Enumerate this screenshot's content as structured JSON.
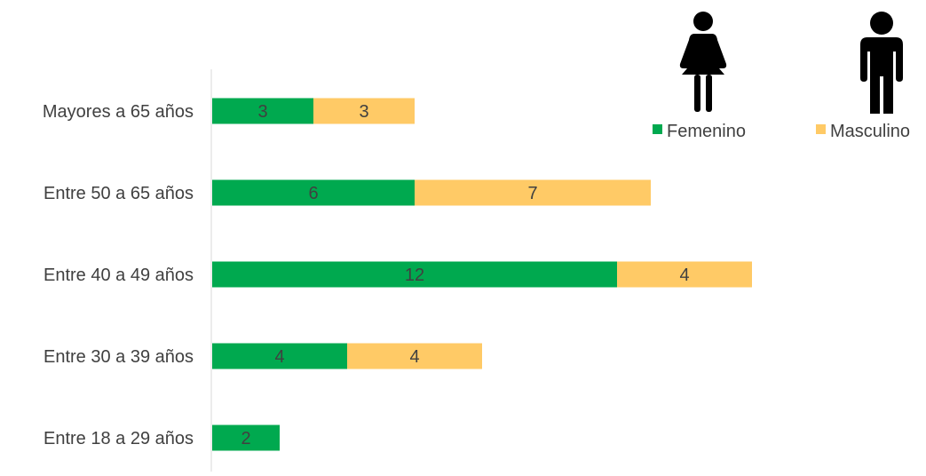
{
  "chart_data": {
    "type": "bar",
    "orientation": "horizontal",
    "stacked": true,
    "categories": [
      "Mayores a 65 años",
      "Entre 50 a 65 años",
      "Entre 40 a 49 años",
      "Entre 30 a 39 años",
      "Entre 18 a 29 años"
    ],
    "series": [
      {
        "name": "Femenino",
        "color": "#00A94F",
        "values": [
          3,
          6,
          12,
          4,
          2
        ]
      },
      {
        "name": "Masculino",
        "color": "#FFCA66",
        "values": [
          3,
          7,
          4,
          4,
          0
        ]
      }
    ],
    "title": "",
    "xlabel": "",
    "ylabel": "",
    "xlim": [
      0,
      20
    ],
    "grid": false,
    "legend_position": "top-right",
    "legend_icons": [
      "female-person-icon",
      "male-person-icon"
    ],
    "label_color": "#404040",
    "axis_color": "#D9D9D9",
    "icon_color": "#000000"
  }
}
